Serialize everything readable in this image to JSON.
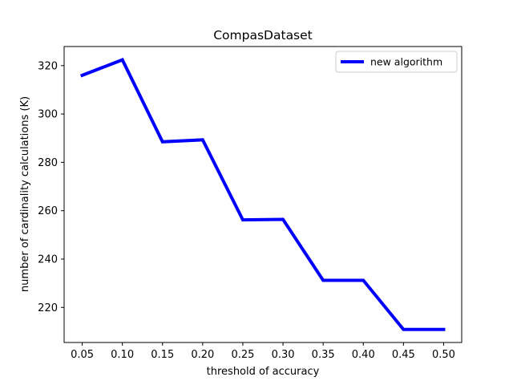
{
  "colors": {
    "series": "#0000ff",
    "axis": "#000000",
    "background": "#ffffff"
  },
  "chart_data": {
    "type": "line",
    "title": "CompasDataset",
    "xlabel": "threshold of accuracy",
    "ylabel": "number of cardinality calculations (K)",
    "xlim": [
      0.0275,
      0.5225
    ],
    "ylim": [
      205.5,
      327.9
    ],
    "xticks": [
      0.05,
      0.1,
      0.15,
      0.2,
      0.25,
      0.3,
      0.35,
      0.4,
      0.45,
      0.5
    ],
    "xtick_labels": [
      "0.05",
      "0.10",
      "0.15",
      "0.20",
      "0.25",
      "0.30",
      "0.35",
      "0.40",
      "0.45",
      "0.50"
    ],
    "yticks": [
      220,
      240,
      260,
      280,
      300,
      320
    ],
    "ytick_labels": [
      "220",
      "240",
      "260",
      "280",
      "300",
      "320"
    ],
    "grid": false,
    "legend": "top-right",
    "series": [
      {
        "name": "new algorithm",
        "color": "#0000ff",
        "x": [
          0.05,
          0.1,
          0.15,
          0.2,
          0.25,
          0.3,
          0.35,
          0.4,
          0.45,
          0.5
        ],
        "y": [
          316.0,
          322.4,
          288.5,
          289.3,
          256.2,
          256.4,
          231.2,
          231.2,
          210.9,
          210.9
        ]
      }
    ]
  }
}
